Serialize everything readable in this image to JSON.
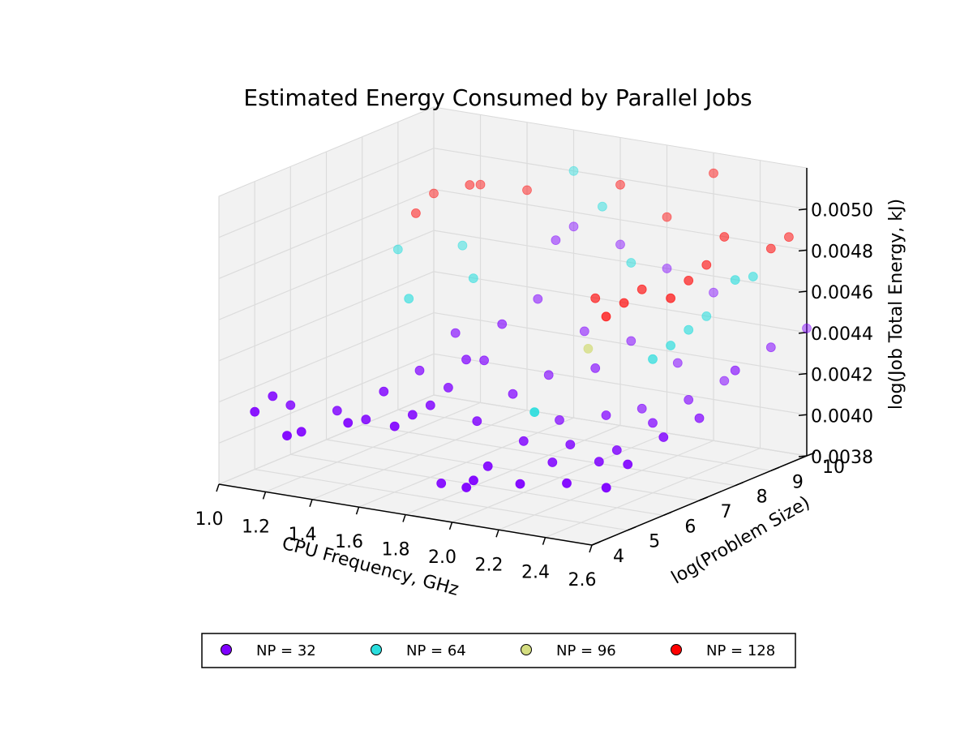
{
  "chart_data": {
    "type": "scatter3d",
    "title": "Estimated Energy Consumed by Parallel Jobs",
    "xlabel": "CPU Frequency, GHz",
    "ylabel": "log(Problem Size)",
    "zlabel": "log(Job Total Energy, kJ)",
    "xlim": [
      1.0,
      2.6
    ],
    "ylim": [
      4,
      10
    ],
    "zlim": [
      0.0038,
      0.0052
    ],
    "xticks": [
      "1.0",
      "1.2",
      "1.4",
      "1.6",
      "1.8",
      "2.0",
      "2.2",
      "2.4",
      "2.6"
    ],
    "yticks": [
      "4",
      "5",
      "6",
      "7",
      "8",
      "9",
      "10"
    ],
    "zticks": [
      "0.0038",
      "0.0040",
      "0.0042",
      "0.0044",
      "0.0046",
      "0.0048",
      "0.0050"
    ],
    "colors": {
      "np32": "#7f00ff",
      "np64": "#2adddd",
      "np96": "#d4dd80",
      "np128": "#ff0000",
      "pane": "#f2f2f2",
      "grid": "#dcdcdc"
    },
    "legend": [
      {
        "label": "NP = 32",
        "color": "#7f00ff"
      },
      {
        "label": "NP = 64",
        "color": "#2adddd"
      },
      {
        "label": "NP = 96",
        "color": "#d4dd80"
      },
      {
        "label": "NP = 128",
        "color": "#ff0000"
      }
    ],
    "series": [
      {
        "name": "NP = 32",
        "color": "#7f00ff",
        "points": [
          [
            1.0,
            5.0,
            0.00408
          ],
          [
            1.0,
            6.0,
            0.00404
          ],
          [
            1.0,
            5.5,
            0.00412
          ],
          [
            1.2,
            5.0,
            0.00402
          ],
          [
            1.2,
            6.0,
            0.00405
          ],
          [
            1.2,
            4.6,
            0.00403
          ],
          [
            1.4,
            5.0,
            0.0041
          ],
          [
            1.4,
            6.0,
            0.00418
          ],
          [
            1.4,
            7.0,
            0.00421
          ],
          [
            1.4,
            5.5,
            0.00408
          ],
          [
            1.4,
            8.0,
            0.00432
          ],
          [
            1.6,
            5.0,
            0.00412
          ],
          [
            1.6,
            6.0,
            0.00415
          ],
          [
            1.6,
            7.0,
            0.0043
          ],
          [
            1.6,
            8.0,
            0.0044
          ],
          [
            1.6,
            9.0,
            0.00445
          ],
          [
            1.6,
            5.5,
            0.00414
          ],
          [
            1.6,
            6.5,
            0.0042
          ],
          [
            1.6,
            7.5,
            0.00426
          ],
          [
            1.6,
            9.5,
            0.0047
          ],
          [
            1.6,
            10.0,
            0.00473
          ],
          [
            1.8,
            5.0,
            0.00388
          ],
          [
            1.8,
            6.0,
            0.00411
          ],
          [
            1.8,
            7.0,
            0.00417
          ],
          [
            1.8,
            8.0,
            0.00419
          ],
          [
            1.8,
            9.0,
            0.00433
          ],
          [
            1.8,
            10.0,
            0.00468
          ],
          [
            2.0,
            4.4,
            0.00394
          ],
          [
            2.0,
            4.6,
            0.00396
          ],
          [
            2.0,
            5.0,
            0.004
          ],
          [
            2.0,
            6.0,
            0.00405
          ],
          [
            2.0,
            7.0,
            0.00408
          ],
          [
            2.0,
            8.0,
            0.00426
          ],
          [
            2.0,
            9.0,
            0.00432
          ],
          [
            2.0,
            10.0,
            0.0046
          ],
          [
            2.2,
            4.6,
            0.00398
          ],
          [
            2.2,
            5.5,
            0.00402
          ],
          [
            2.2,
            6.0,
            0.00407
          ],
          [
            2.2,
            7.0,
            0.00414
          ],
          [
            2.2,
            8.0,
            0.0041
          ],
          [
            2.2,
            9.0,
            0.00425
          ],
          [
            2.2,
            10.0,
            0.00452
          ],
          [
            2.4,
            4.6,
            0.00402
          ],
          [
            2.4,
            5.5,
            0.00406
          ],
          [
            2.4,
            6.0,
            0.00408
          ],
          [
            2.4,
            7.0,
            0.00414
          ],
          [
            2.4,
            8.0,
            0.00418
          ],
          [
            2.4,
            9.0,
            0.0042
          ],
          [
            2.6,
            4.4,
            0.00405
          ],
          [
            2.6,
            5.0,
            0.00412
          ],
          [
            2.6,
            6.0,
            0.00418
          ],
          [
            2.6,
            7.0,
            0.0042
          ],
          [
            2.6,
            8.0,
            0.00436
          ],
          [
            2.6,
            9.0,
            0.0044
          ],
          [
            2.6,
            10.0,
            0.00442
          ]
        ]
      },
      {
        "name": "NP = 64",
        "color": "#2adddd",
        "points": [
          [
            1.0,
            9.0,
            0.00458
          ],
          [
            1.2,
            8.0,
            0.00445
          ],
          [
            1.2,
            9.5,
            0.0046
          ],
          [
            1.4,
            8.5,
            0.00455
          ],
          [
            1.8,
            9.5,
            0.0049
          ],
          [
            2.0,
            9.0,
            0.0047
          ],
          [
            1.6,
            10.0,
            0.005
          ],
          [
            2.2,
            5.0,
            0.0043
          ],
          [
            2.4,
            7.0,
            0.00445
          ],
          [
            2.4,
            7.5,
            0.00448
          ],
          [
            2.4,
            8.0,
            0.00452
          ],
          [
            2.4,
            8.5,
            0.00455
          ],
          [
            2.6,
            8.0,
            0.0048
          ],
          [
            2.6,
            8.5,
            0.00478
          ]
        ]
      },
      {
        "name": "NP = 96",
        "color": "#d4dd80",
        "points": [
          [
            2.2,
            6.5,
            0.0045
          ]
        ]
      },
      {
        "name": "NP = 128",
        "color": "#ff0000",
        "points": [
          [
            1.0,
            9.5,
            0.00472
          ],
          [
            1.0,
            10.0,
            0.00478
          ],
          [
            1.2,
            10.0,
            0.00486
          ],
          [
            1.2,
            9.7,
            0.00488
          ],
          [
            1.4,
            10.0,
            0.00487
          ],
          [
            1.8,
            10.0,
            0.00497
          ],
          [
            2.0,
            10.0,
            0.00485
          ],
          [
            2.2,
            10.0,
            0.0051
          ],
          [
            2.0,
            8.0,
            0.0046
          ],
          [
            2.2,
            7.0,
            0.00462
          ],
          [
            2.2,
            7.5,
            0.00465
          ],
          [
            2.2,
            8.0,
            0.00468
          ],
          [
            2.4,
            7.5,
            0.00471
          ],
          [
            2.4,
            8.0,
            0.00476
          ],
          [
            2.4,
            8.5,
            0.0048
          ],
          [
            2.4,
            9.0,
            0.0049
          ],
          [
            2.6,
            9.0,
            0.00488
          ],
          [
            2.6,
            9.5,
            0.0049
          ]
        ]
      }
    ]
  }
}
